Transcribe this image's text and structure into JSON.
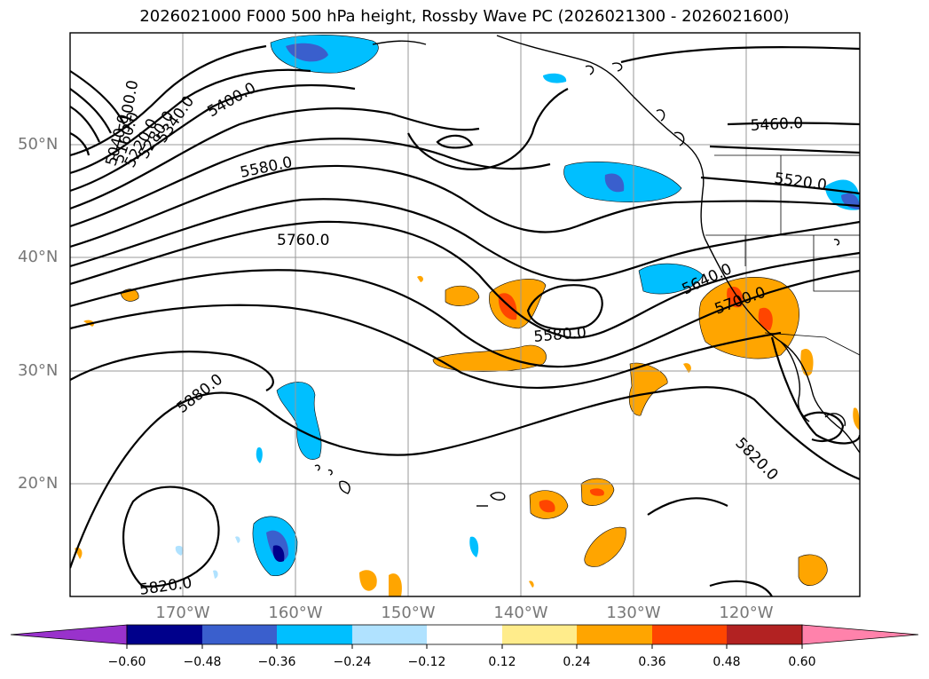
{
  "title": "2026021000 F000 500 hPa height, Rossby Wave PC (2026021300 - 2026021600)",
  "map": {
    "lat_labels": [
      "50°N",
      "40°N",
      "30°N",
      "20°N"
    ],
    "lon_labels": [
      "170°W",
      "160°W",
      "150°W",
      "140°W",
      "130°W",
      "120°W"
    ],
    "contour_labels": [
      "5400.0",
      "5340.0",
      "5280.0",
      "5220.0",
      "5160.0",
      "5100.0",
      "5040.0",
      "5580.0",
      "5760.0",
      "5880.0",
      "5820.0",
      "5580.0",
      "5640.0",
      "5700.0",
      "5820.0",
      "5460.0",
      "5520.0"
    ]
  },
  "colorbar": {
    "ticks": [
      "−0.60",
      "−0.48",
      "−0.36",
      "−0.24",
      "−0.12",
      "0.12",
      "0.24",
      "0.36",
      "0.48",
      "0.60"
    ],
    "colors": [
      "#9932cc",
      "#00008b",
      "#3a5fcd",
      "#00bfff",
      "#b0e2ff",
      "#ffffff",
      "#ffec8b",
      "#ffa500",
      "#ff4500",
      "#b22222",
      "#ff82ab"
    ]
  }
}
